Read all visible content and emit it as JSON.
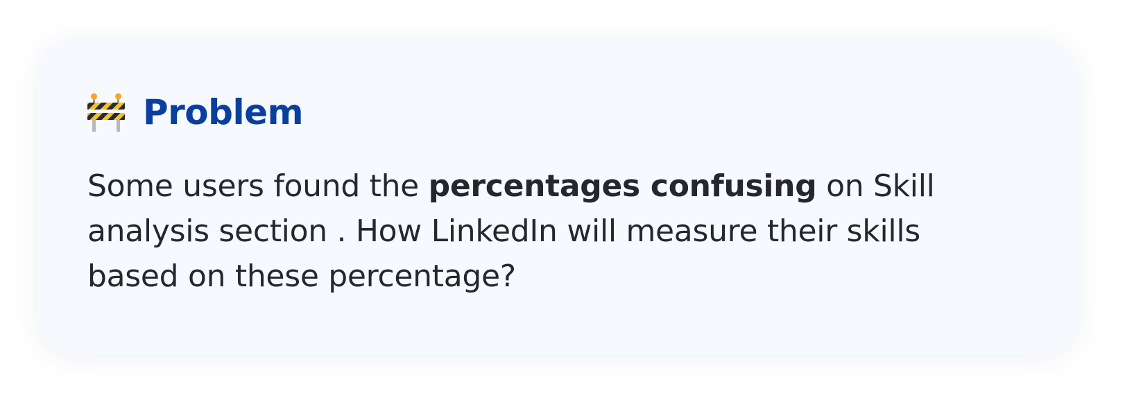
{
  "card": {
    "icon": "construction-barrier-icon",
    "title": "Problem",
    "body": {
      "prefix": "Some users found the ",
      "emphasis": "percentages confusing",
      "suffix": " on Skill analysis section . How LinkedIn will measure their skills based on these percentage?"
    }
  },
  "colors": {
    "title": "#0a3f9e",
    "text": "#26272e",
    "card_background": "#f6f9fd"
  }
}
